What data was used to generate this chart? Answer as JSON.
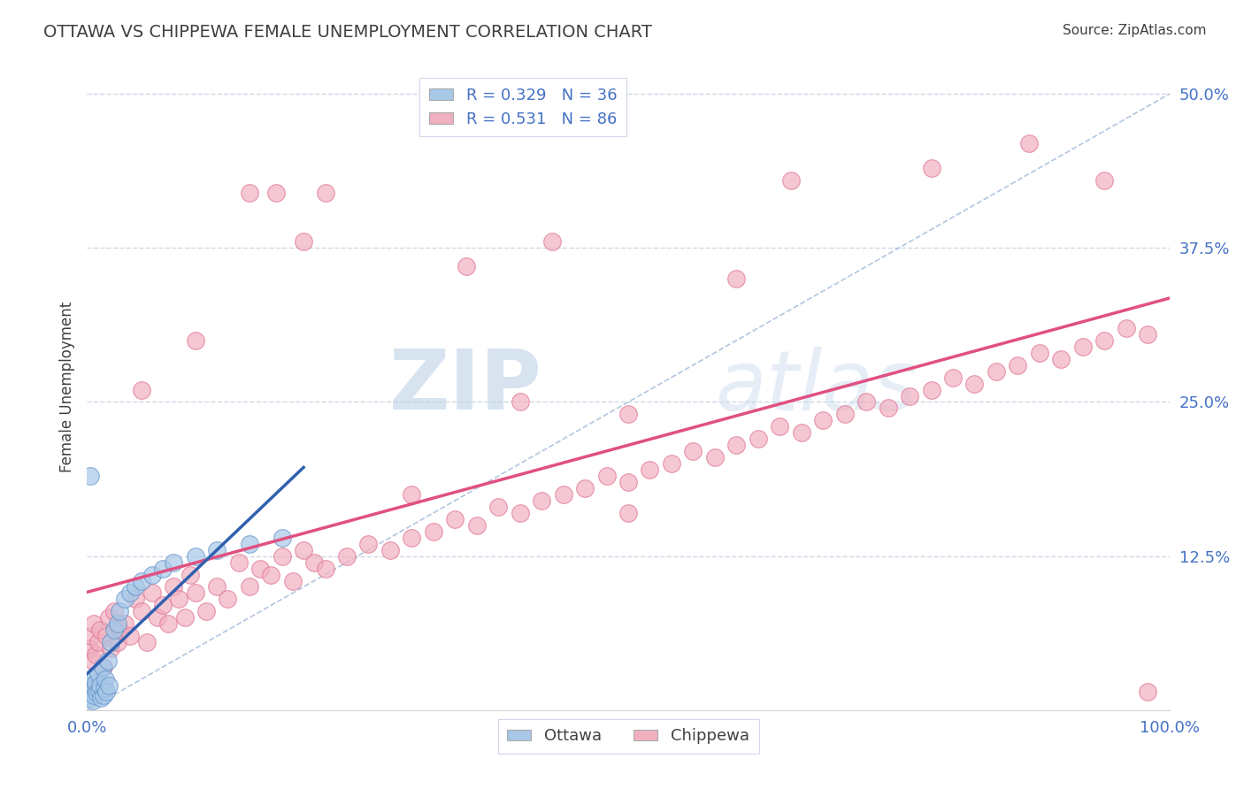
{
  "title": "OTTAWA VS CHIPPEWA FEMALE UNEMPLOYMENT CORRELATION CHART",
  "source_text": "Source: ZipAtlas.com",
  "xlabel": "",
  "ylabel": "Female Unemployment",
  "xlim": [
    0,
    1.0
  ],
  "ylim": [
    0,
    0.525
  ],
  "xticks": [
    0.0,
    0.125,
    0.25,
    0.375,
    0.5,
    0.625,
    0.75,
    0.875,
    1.0
  ],
  "xticklabels": [
    "0.0%",
    "",
    "",
    "",
    "",
    "",
    "",
    "",
    "100.0%"
  ],
  "ytick_positions": [
    0.0,
    0.125,
    0.25,
    0.375,
    0.5
  ],
  "yticklabels": [
    "",
    "12.5%",
    "25.0%",
    "37.5%",
    "50.0%"
  ],
  "ottawa_color": "#a8c8e8",
  "ottawa_edge_color": "#6090c8",
  "chippewa_color": "#f0b0c0",
  "chippewa_edge_color": "#e07090",
  "ottawa_line_color": "#3060b0",
  "chippewa_line_color": "#e05080",
  "diag_color": "#a0b8d8",
  "legend_ottawa_r": "0.329",
  "legend_ottawa_n": "36",
  "legend_chippewa_r": "0.531",
  "legend_chippewa_n": "86",
  "watermark_zip": "ZIP",
  "watermark_atlas": "atlas",
  "background_color": "#ffffff",
  "plot_bg_color": "#ffffff",
  "grid_color": "#c8d4e4",
  "title_color": "#404040",
  "tick_color": "#4472c4",
  "source_color": "#404040",
  "ylabel_color": "#404040",
  "ottawa_x": [
    0.002,
    0.003,
    0.004,
    0.005,
    0.005,
    0.006,
    0.007,
    0.008,
    0.009,
    0.01,
    0.011,
    0.012,
    0.013,
    0.014,
    0.015,
    0.016,
    0.017,
    0.018,
    0.019,
    0.02,
    0.022,
    0.025,
    0.028,
    0.03,
    0.035,
    0.04,
    0.045,
    0.05,
    0.06,
    0.07,
    0.08,
    0.1,
    0.12,
    0.15,
    0.18,
    0.003
  ],
  "ottawa_y": [
    0.02,
    0.015,
    0.01,
    0.008,
    0.025,
    0.012,
    0.018,
    0.022,
    0.014,
    0.03,
    0.016,
    0.02,
    0.01,
    0.035,
    0.012,
    0.018,
    0.025,
    0.015,
    0.04,
    0.02,
    0.055,
    0.065,
    0.07,
    0.08,
    0.09,
    0.095,
    0.1,
    0.105,
    0.11,
    0.115,
    0.12,
    0.125,
    0.13,
    0.135,
    0.14,
    0.19
  ],
  "chippewa_x": [
    0.002,
    0.004,
    0.005,
    0.006,
    0.008,
    0.01,
    0.012,
    0.015,
    0.018,
    0.02,
    0.022,
    0.025,
    0.028,
    0.03,
    0.035,
    0.04,
    0.045,
    0.05,
    0.055,
    0.06,
    0.065,
    0.07,
    0.075,
    0.08,
    0.085,
    0.09,
    0.095,
    0.1,
    0.11,
    0.12,
    0.13,
    0.14,
    0.15,
    0.16,
    0.17,
    0.18,
    0.19,
    0.2,
    0.21,
    0.22,
    0.24,
    0.26,
    0.28,
    0.3,
    0.32,
    0.34,
    0.36,
    0.38,
    0.4,
    0.42,
    0.44,
    0.46,
    0.48,
    0.5,
    0.52,
    0.54,
    0.56,
    0.58,
    0.6,
    0.62,
    0.64,
    0.66,
    0.68,
    0.7,
    0.72,
    0.74,
    0.76,
    0.78,
    0.8,
    0.82,
    0.84,
    0.86,
    0.88,
    0.9,
    0.92,
    0.94,
    0.96,
    0.98,
    0.05,
    0.1,
    0.15,
    0.2,
    0.3,
    0.4,
    0.5,
    0.6
  ],
  "chippewa_y": [
    0.05,
    0.06,
    0.04,
    0.07,
    0.045,
    0.055,
    0.065,
    0.035,
    0.06,
    0.075,
    0.05,
    0.08,
    0.055,
    0.065,
    0.07,
    0.06,
    0.09,
    0.08,
    0.055,
    0.095,
    0.075,
    0.085,
    0.07,
    0.1,
    0.09,
    0.075,
    0.11,
    0.095,
    0.08,
    0.1,
    0.09,
    0.12,
    0.1,
    0.115,
    0.11,
    0.125,
    0.105,
    0.13,
    0.12,
    0.115,
    0.125,
    0.135,
    0.13,
    0.14,
    0.145,
    0.155,
    0.15,
    0.165,
    0.16,
    0.17,
    0.175,
    0.18,
    0.19,
    0.185,
    0.195,
    0.2,
    0.21,
    0.205,
    0.215,
    0.22,
    0.23,
    0.225,
    0.235,
    0.24,
    0.25,
    0.245,
    0.255,
    0.26,
    0.27,
    0.265,
    0.275,
    0.28,
    0.29,
    0.285,
    0.295,
    0.3,
    0.31,
    0.305,
    0.26,
    0.3,
    0.42,
    0.38,
    0.175,
    0.25,
    0.16,
    0.35
  ],
  "chippewa_outliers_x": [
    0.175,
    0.22,
    0.5,
    0.65,
    0.78,
    0.87,
    0.94,
    0.98,
    0.35,
    0.43
  ],
  "chippewa_outliers_y": [
    0.42,
    0.42,
    0.24,
    0.43,
    0.44,
    0.46,
    0.43,
    0.015,
    0.36,
    0.38
  ]
}
